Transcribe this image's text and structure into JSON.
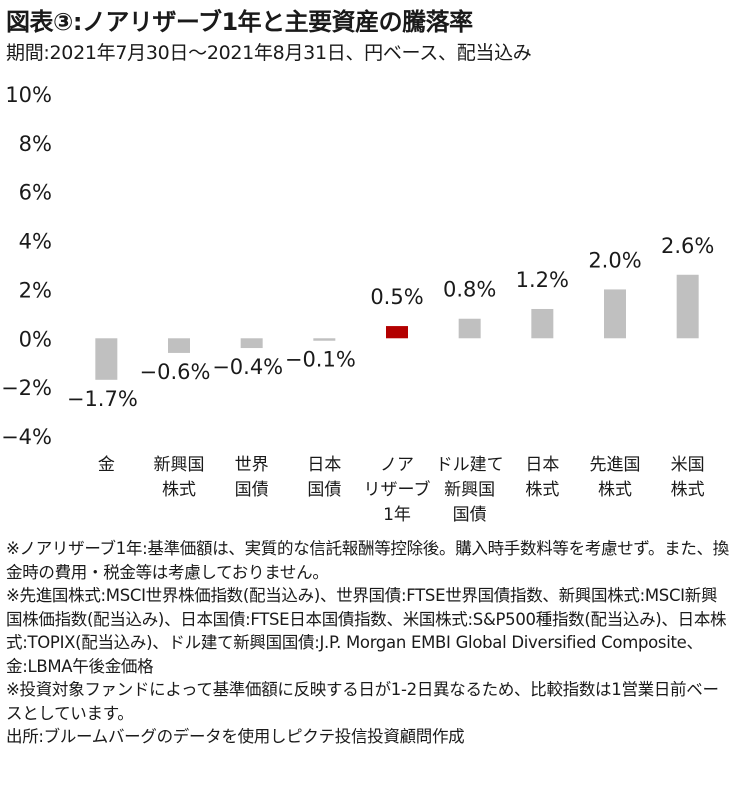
{
  "title": "図表③:ノアリザーブ1年と主要資産の騰落率",
  "subtitle": "期間:2021年7月30日～2021年8月31日、円ベース、配当込み",
  "chart_data": {
    "type": "bar",
    "title": "図表③:ノアリザーブ1年と主要資産の騰落率",
    "subtitle": "期間:2021年7月30日～2021年8月31日、円ベース、配当込み",
    "categories": [
      [
        "金"
      ],
      [
        "新興国",
        "株式"
      ],
      [
        "世界",
        "国債"
      ],
      [
        "日本",
        "国債"
      ],
      [
        "ノア",
        "リザーブ",
        "1年"
      ],
      [
        "ドル建て",
        "新興国",
        "国債"
      ],
      [
        "日本",
        "株式"
      ],
      [
        "先進国",
        "株式"
      ],
      [
        "米国",
        "株式"
      ]
    ],
    "values": [
      -1.7,
      -0.6,
      -0.4,
      -0.1,
      0.5,
      0.8,
      1.2,
      2.0,
      2.6
    ],
    "value_labels": [
      "−1.7%",
      "−0.6%",
      "−0.4%",
      "−0.1%",
      "0.5%",
      "0.8%",
      "1.2%",
      "2.0%",
      "2.6%"
    ],
    "highlight_index": 4,
    "colors": {
      "default": "#c0c0c0",
      "highlight": "#b30000"
    },
    "ylim": [
      -4,
      10
    ],
    "yticks": [
      -4,
      -2,
      0,
      2,
      4,
      6,
      8,
      10
    ],
    "ytick_labels": [
      "−4%",
      "−2%",
      "0%",
      "2%",
      "4%",
      "6%",
      "8%",
      "10%"
    ],
    "xlabel": "",
    "ylabel": "",
    "grid": false,
    "legend": "none"
  },
  "notes": [
    "※ノアリザーブ1年:基準価額は、実質的な信託報酬等控除後。購入時手数料等を考慮せず。また、換金時の費用・税金等は考慮しておりません。",
    "※先進国株式:MSCI世界株価指数(配当込み)、世界国債:FTSE世界国債指数、新興国株式:MSCI新興国株価指数(配当込み)、日本国債:FTSE日本国債指数、米国株式:S&P500種指数(配当込み)、日本株式:TOPIX(配当込み)、ドル建て新興国国債:J.P. Morgan EMBI Global Diversified Composite、金:LBMA午後金価格",
    "※投資対象ファンドによって基準価額に反映する日が1-2日異なるため、比較指数は1営業日前ベースとしています。",
    "出所:ブルームバーグのデータを使用しピクテ投信投資顧問作成"
  ]
}
